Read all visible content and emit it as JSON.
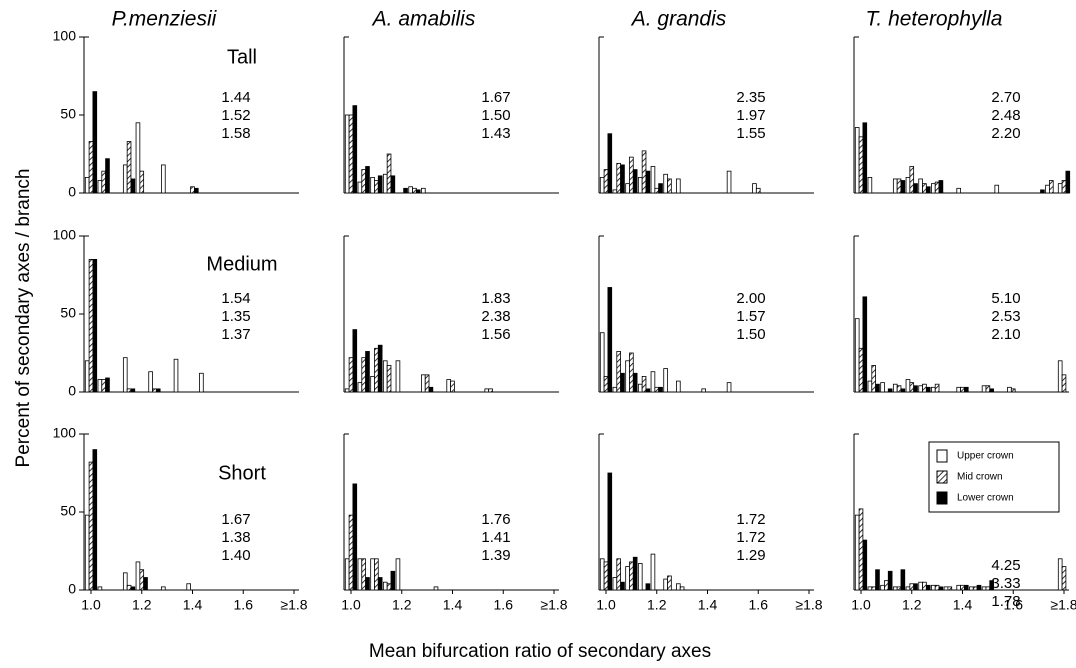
{
  "y_label": "Percent of secondary axes / branch",
  "x_label": "Mean bifurcation ratio of secondary axes",
  "chart_data": [
    {
      "type": "bar",
      "title": "P.menziesii",
      "row_label": "Tall",
      "annotations": [
        "1.44",
        "1.52",
        "1.58"
      ],
      "categories": [
        null,
        null,
        null,
        null,
        null,
        null,
        null,
        null,
        null,
        null,
        null,
        null,
        null,
        null,
        null,
        null,
        null
      ],
      "ylim": [
        0,
        100
      ],
      "yticks": [
        0,
        50,
        100
      ],
      "series": [
        {
          "name": "Upper crown",
          "color": "#ffffff",
          "values": [
            10,
            8,
            0,
            18,
            45,
            0,
            18,
            0,
            0,
            0,
            0,
            0,
            0,
            0,
            0,
            0,
            0
          ]
        },
        {
          "name": "Mid crown",
          "color": "#ffffff",
          "hatch": true,
          "values": [
            33,
            14,
            0,
            33,
            14,
            0,
            0,
            0,
            4,
            0,
            0,
            0,
            0,
            0,
            0,
            0,
            0
          ]
        },
        {
          "name": "Lower crown",
          "color": "#000000",
          "values": [
            65,
            22,
            0,
            9,
            0,
            0,
            0,
            0,
            3,
            0,
            0,
            0,
            0,
            0,
            0,
            0,
            0
          ]
        }
      ]
    },
    {
      "type": "bar",
      "title": "A. amabilis",
      "annotations": [
        "1.67",
        "1.50",
        "1.43"
      ],
      "categories": [
        null,
        null,
        null,
        null,
        null,
        null,
        null,
        null,
        null,
        null,
        null,
        null,
        null,
        null,
        null,
        null,
        null
      ],
      "ylim": [
        0,
        100
      ],
      "series": [
        {
          "name": "Upper crown",
          "color": "#ffffff",
          "values": [
            50,
            7,
            10,
            12,
            0,
            4,
            3,
            0,
            0,
            0,
            0,
            0,
            0,
            0,
            0,
            0,
            0
          ]
        },
        {
          "name": "Mid crown",
          "color": "#ffffff",
          "hatch": true,
          "values": [
            50,
            15,
            8,
            25,
            0,
            3,
            0,
            0,
            0,
            0,
            0,
            0,
            0,
            0,
            0,
            0,
            0
          ]
        },
        {
          "name": "Lower crown",
          "color": "#000000",
          "values": [
            56,
            17,
            11,
            11,
            3,
            2,
            0,
            0,
            0,
            0,
            0,
            0,
            0,
            0,
            0,
            0,
            0
          ]
        }
      ]
    },
    {
      "type": "bar",
      "title": "A. grandis",
      "annotations": [
        "2.35",
        "1.97",
        "1.55"
      ],
      "categories": [
        null,
        null,
        null,
        null,
        null,
        null,
        null,
        null,
        null,
        null,
        null,
        null,
        null,
        null,
        null,
        null,
        null
      ],
      "ylim": [
        0,
        100
      ],
      "series": [
        {
          "name": "Upper crown",
          "color": "#ffffff",
          "values": [
            10,
            2,
            6,
            10,
            17,
            12,
            9,
            0,
            0,
            0,
            14,
            0,
            6,
            0,
            0,
            0,
            0
          ]
        },
        {
          "name": "Mid crown",
          "color": "#ffffff",
          "hatch": true,
          "values": [
            15,
            19,
            23,
            27,
            3,
            9,
            0,
            0,
            0,
            0,
            0,
            0,
            3,
            0,
            0,
            0,
            0
          ]
        },
        {
          "name": "Lower crown",
          "color": "#000000",
          "values": [
            38,
            18,
            15,
            14,
            6,
            0,
            0,
            0,
            0,
            0,
            0,
            0,
            0,
            0,
            0,
            0,
            0
          ]
        }
      ]
    },
    {
      "type": "bar",
      "title": "T. heterophylla",
      "annotations": [
        "2.70",
        "2.48",
        "2.20"
      ],
      "categories": [
        null,
        null,
        null,
        null,
        null,
        null,
        null,
        null,
        null,
        null,
        null,
        null,
        null,
        null,
        null,
        null,
        null
      ],
      "ylim": [
        0,
        100
      ],
      "series": [
        {
          "name": "Upper crown",
          "color": "#ffffff",
          "values": [
            42,
            10,
            0,
            9,
            10,
            9,
            6,
            0,
            3,
            0,
            0,
            5,
            0,
            0,
            0,
            5,
            6
          ]
        },
        {
          "name": "Mid crown",
          "color": "#ffffff",
          "hatch": true,
          "values": [
            36,
            0,
            0,
            9,
            17,
            6,
            7,
            0,
            0,
            0,
            0,
            0,
            0,
            0,
            0,
            8,
            8
          ]
        },
        {
          "name": "Lower crown",
          "color": "#000000",
          "values": [
            45,
            0,
            0,
            8,
            6,
            4,
            8,
            0,
            0,
            0,
            0,
            0,
            0,
            0,
            2,
            0,
            14
          ]
        }
      ]
    },
    {
      "type": "bar",
      "row_label": "Medium",
      "annotations": [
        "1.54",
        "1.35",
        "1.37"
      ],
      "categories": [
        null,
        null,
        null,
        null,
        null,
        null,
        null,
        null,
        null,
        null,
        null,
        null,
        null,
        null,
        null,
        null,
        null
      ],
      "ylim": [
        0,
        100
      ],
      "yticks": [
        0,
        50,
        100
      ],
      "series": [
        {
          "name": "Upper crown",
          "color": "#ffffff",
          "values": [
            20,
            8,
            0,
            22,
            0,
            13,
            0,
            21,
            0,
            12,
            0,
            0,
            0,
            0,
            0,
            0,
            0
          ]
        },
        {
          "name": "Mid crown",
          "color": "#ffffff",
          "hatch": true,
          "values": [
            85,
            8,
            0,
            2,
            0,
            2,
            0,
            0,
            0,
            0,
            0,
            0,
            0,
            0,
            0,
            0,
            0
          ]
        },
        {
          "name": "Lower crown",
          "color": "#000000",
          "values": [
            85,
            9,
            0,
            2,
            0,
            2,
            0,
            0,
            0,
            0,
            0,
            0,
            0,
            0,
            0,
            0,
            0
          ]
        }
      ]
    },
    {
      "type": "bar",
      "annotations": [
        "1.83",
        "2.38",
        "1.56"
      ],
      "categories": [
        null,
        null,
        null,
        null,
        null,
        null,
        null,
        null,
        null,
        null,
        null,
        null,
        null,
        null,
        null,
        null,
        null
      ],
      "ylim": [
        0,
        100
      ],
      "series": [
        {
          "name": "Upper crown",
          "color": "#ffffff",
          "values": [
            2,
            6,
            10,
            20,
            20,
            0,
            11,
            0,
            8,
            0,
            0,
            2,
            0,
            0,
            0,
            0,
            0
          ]
        },
        {
          "name": "Mid crown",
          "color": "#ffffff",
          "hatch": true,
          "values": [
            22,
            22,
            28,
            17,
            0,
            0,
            11,
            0,
            7,
            0,
            0,
            2,
            0,
            0,
            0,
            0,
            0
          ]
        },
        {
          "name": "Lower crown",
          "color": "#000000",
          "values": [
            40,
            26,
            30,
            0,
            0,
            0,
            3,
            0,
            0,
            0,
            0,
            0,
            0,
            0,
            0,
            0,
            0
          ]
        }
      ]
    },
    {
      "type": "bar",
      "annotations": [
        "2.00",
        "1.57",
        "1.50"
      ],
      "categories": [
        null,
        null,
        null,
        null,
        null,
        null,
        null,
        null,
        null,
        null,
        null,
        null,
        null,
        null,
        null,
        null,
        null
      ],
      "ylim": [
        0,
        100
      ],
      "series": [
        {
          "name": "Upper crown",
          "color": "#ffffff",
          "values": [
            38,
            3,
            20,
            5,
            13,
            15,
            7,
            0,
            2,
            0,
            6,
            0,
            0,
            0,
            0,
            0,
            0
          ]
        },
        {
          "name": "Mid crown",
          "color": "#ffffff",
          "hatch": true,
          "values": [
            10,
            26,
            25,
            10,
            3,
            0,
            0,
            0,
            0,
            0,
            0,
            0,
            0,
            0,
            0,
            0,
            0
          ]
        },
        {
          "name": "Lower crown",
          "color": "#000000",
          "values": [
            67,
            12,
            12,
            2,
            3,
            0,
            0,
            0,
            0,
            0,
            0,
            0,
            0,
            0,
            0,
            0,
            0
          ]
        }
      ]
    },
    {
      "type": "bar",
      "annotations": [
        "5.10",
        "2.53",
        "2.10"
      ],
      "categories": [
        null,
        null,
        null,
        null,
        null,
        null,
        null,
        null,
        null,
        null,
        null,
        null,
        null,
        null,
        null,
        null,
        null
      ],
      "ylim": [
        0,
        100
      ],
      "series": [
        {
          "name": "Upper crown",
          "color": "#ffffff",
          "values": [
            47,
            7,
            6,
            5,
            8,
            4,
            3,
            0,
            3,
            0,
            4,
            0,
            3,
            0,
            0,
            0,
            20
          ]
        },
        {
          "name": "Mid crown",
          "color": "#ffffff",
          "hatch": true,
          "values": [
            28,
            17,
            0,
            4,
            6,
            5,
            5,
            0,
            3,
            0,
            4,
            0,
            2,
            0,
            0,
            0,
            11
          ]
        },
        {
          "name": "Lower crown",
          "color": "#000000",
          "values": [
            61,
            5,
            2,
            2,
            4,
            3,
            0,
            0,
            3,
            0,
            2,
            0,
            0,
            0,
            0,
            0,
            0
          ]
        }
      ]
    },
    {
      "type": "bar",
      "row_label": "Short",
      "annotations": [
        "1.67",
        "1.38",
        "1.40"
      ],
      "categories": [
        "1.0",
        null,
        null,
        null,
        "1.2",
        null,
        null,
        null,
        "1.4",
        null,
        null,
        null,
        "1.6",
        null,
        null,
        null,
        "≥1.8"
      ],
      "ylim": [
        0,
        100
      ],
      "yticks": [
        0,
        50,
        100
      ],
      "series": [
        {
          "name": "Upper crown",
          "color": "#ffffff",
          "values": [
            48,
            2,
            0,
            11,
            18,
            0,
            2,
            0,
            4,
            0,
            0,
            0,
            0,
            0,
            0,
            0,
            0
          ]
        },
        {
          "name": "Mid crown",
          "color": "#ffffff",
          "hatch": true,
          "values": [
            82,
            0,
            0,
            3,
            13,
            0,
            0,
            0,
            0,
            0,
            0,
            0,
            0,
            0,
            0,
            0,
            0
          ]
        },
        {
          "name": "Lower crown",
          "color": "#000000",
          "values": [
            90,
            0,
            0,
            2,
            8,
            0,
            0,
            0,
            0,
            0,
            0,
            0,
            0,
            0,
            0,
            0,
            0
          ]
        }
      ]
    },
    {
      "type": "bar",
      "annotations": [
        "1.76",
        "1.41",
        "1.39"
      ],
      "categories": [
        "1.0",
        null,
        null,
        null,
        "1.2",
        null,
        null,
        null,
        "1.4",
        null,
        null,
        null,
        "1.6",
        null,
        null,
        null,
        "≥1.8"
      ],
      "ylim": [
        0,
        100
      ],
      "series": [
        {
          "name": "Upper crown",
          "color": "#ffffff",
          "values": [
            20,
            20,
            20,
            5,
            20,
            0,
            0,
            2,
            0,
            0,
            0,
            0,
            0,
            0,
            0,
            0,
            0
          ]
        },
        {
          "name": "Mid crown",
          "color": "#ffffff",
          "hatch": true,
          "values": [
            48,
            20,
            20,
            4,
            0,
            0,
            0,
            0,
            0,
            0,
            0,
            0,
            0,
            0,
            0,
            0,
            0
          ]
        },
        {
          "name": "Lower crown",
          "color": "#000000",
          "values": [
            68,
            8,
            8,
            12,
            0,
            0,
            0,
            0,
            0,
            0,
            0,
            0,
            0,
            0,
            0,
            0,
            0
          ]
        }
      ]
    },
    {
      "type": "bar",
      "annotations": [
        "1.72",
        "1.72",
        "1.29"
      ],
      "categories": [
        "1.0",
        null,
        null,
        null,
        "1.2",
        null,
        null,
        null,
        "1.4",
        null,
        null,
        null,
        "1.6",
        null,
        null,
        null,
        "≥1.8"
      ],
      "ylim": [
        0,
        100
      ],
      "series": [
        {
          "name": "Upper crown",
          "color": "#ffffff",
          "values": [
            20,
            8,
            15,
            17,
            23,
            7,
            4,
            0,
            0,
            0,
            0,
            0,
            0,
            0,
            0,
            0,
            0
          ]
        },
        {
          "name": "Mid crown",
          "color": "#ffffff",
          "hatch": true,
          "values": [
            18,
            20,
            18,
            0,
            0,
            9,
            2,
            0,
            0,
            0,
            0,
            0,
            0,
            0,
            0,
            0,
            0
          ]
        },
        {
          "name": "Lower crown",
          "color": "#000000",
          "values": [
            75,
            5,
            21,
            4,
            0,
            0,
            0,
            0,
            0,
            0,
            0,
            0,
            0,
            0,
            0,
            0,
            0
          ]
        }
      ]
    },
    {
      "type": "bar",
      "annotations": [
        "4.25",
        "3.33",
        "1.78"
      ],
      "legend": "upper right",
      "categories": [
        "1.0",
        null,
        null,
        null,
        "1.2",
        null,
        null,
        null,
        "1.4",
        null,
        null,
        null,
        "1.6",
        null,
        null,
        null,
        "≥1.8"
      ],
      "ylim": [
        0,
        100
      ],
      "series": [
        {
          "name": "Upper crown",
          "color": "#ffffff",
          "values": [
            48,
            2,
            3,
            2,
            2,
            5,
            3,
            2,
            3,
            2,
            2,
            0,
            0,
            0,
            0,
            0,
            20
          ]
        },
        {
          "name": "Mid crown",
          "color": "#ffffff",
          "hatch": true,
          "values": [
            52,
            2,
            6,
            2,
            4,
            5,
            3,
            2,
            3,
            2,
            2,
            0,
            0,
            0,
            0,
            0,
            15
          ]
        },
        {
          "name": "Lower crown",
          "color": "#000000",
          "values": [
            32,
            13,
            12,
            13,
            4,
            3,
            2,
            0,
            3,
            3,
            6,
            0,
            0,
            0,
            0,
            0,
            0
          ]
        }
      ]
    }
  ]
}
